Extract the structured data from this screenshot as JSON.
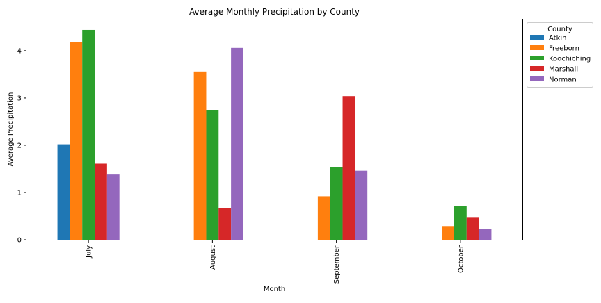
{
  "chart_data": {
    "type": "bar",
    "title": "Average Monthly Precipitation by County",
    "xlabel": "Month",
    "ylabel": "Average Precipitation",
    "categories": [
      "July",
      "August",
      "September",
      "October"
    ],
    "series": [
      {
        "name": "Atkin",
        "color": "#1f77b4",
        "values": [
          2.02,
          null,
          null,
          null
        ]
      },
      {
        "name": "Freeborn",
        "color": "#ff7f0e",
        "values": [
          4.18,
          3.56,
          0.92,
          0.29
        ]
      },
      {
        "name": "Koochiching",
        "color": "#2ca02c",
        "values": [
          4.44,
          2.74,
          1.54,
          0.72
        ]
      },
      {
        "name": "Marshall",
        "color": "#d62728",
        "values": [
          1.61,
          0.67,
          3.04,
          0.48
        ]
      },
      {
        "name": "Norman",
        "color": "#9467bd",
        "values": [
          1.38,
          4.06,
          1.46,
          0.23
        ]
      }
    ],
    "ylim": [
      0,
      4.66
    ],
    "yticks": [
      "0",
      "1",
      "2",
      "3",
      "4"
    ],
    "legend": {
      "title": "County",
      "placement": "outside-top-right"
    },
    "grid": false
  }
}
